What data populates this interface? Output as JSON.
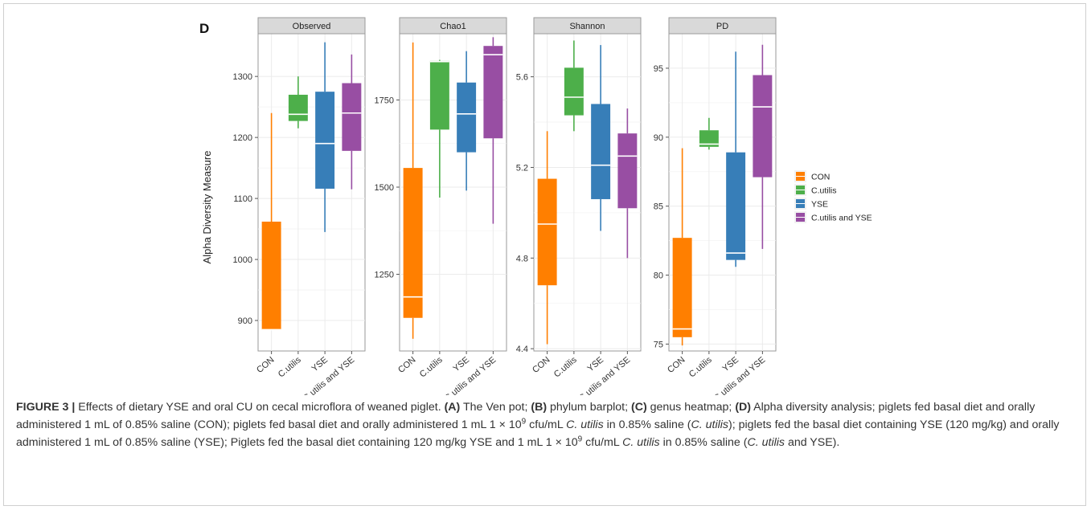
{
  "panel_label": "D",
  "y_axis_label": "Alpha Diversity Measure",
  "legend": {
    "placement": "right",
    "entries": [
      {
        "name": "CON",
        "color": "#FF7F00"
      },
      {
        "name": "C.utilis",
        "color": "#4DAF4A"
      },
      {
        "name": "YSE",
        "color": "#377EB8"
      },
      {
        "name": "C.utilis and YSE",
        "color": "#984EA3"
      }
    ]
  },
  "chart_data": [
    {
      "type": "boxplot",
      "title": "Observed",
      "categories": [
        "CON",
        "C.utilis",
        "YSE",
        "C.utilis and YSE"
      ],
      "ylim": [
        850,
        1370
      ],
      "yticks": [
        900,
        1000,
        1100,
        1200,
        1300
      ],
      "boxes": [
        {
          "min": 885,
          "q1": 885,
          "median": 885,
          "q3": 1062,
          "max": 1240
        },
        {
          "min": 1215,
          "q1": 1227,
          "median": 1238,
          "q3": 1270,
          "max": 1300
        },
        {
          "min": 1045,
          "q1": 1116,
          "median": 1190,
          "q3": 1275,
          "max": 1356
        },
        {
          "min": 1115,
          "q1": 1178,
          "median": 1240,
          "q3": 1289,
          "max": 1336
        }
      ]
    },
    {
      "type": "boxplot",
      "title": "Chao1",
      "categories": [
        "CON",
        "C.utilis",
        "YSE",
        "C.utilis and YSE"
      ],
      "ylim": [
        1030,
        1940
      ],
      "yticks": [
        1250,
        1500,
        1750
      ],
      "boxes": [
        {
          "min": 1065,
          "q1": 1125,
          "median": 1185,
          "q3": 1555,
          "max": 1915
        },
        {
          "min": 1470,
          "q1": 1665,
          "median": 1860,
          "q3": 1862,
          "max": 1865
        },
        {
          "min": 1490,
          "q1": 1600,
          "median": 1710,
          "q3": 1800,
          "max": 1890
        },
        {
          "min": 1395,
          "q1": 1640,
          "median": 1880,
          "q3": 1905,
          "max": 1930
        }
      ]
    },
    {
      "type": "boxplot",
      "title": "Shannon",
      "categories": [
        "CON",
        "C.utilis",
        "YSE",
        "C.utilis and YSE"
      ],
      "ylim": [
        4.39,
        5.79
      ],
      "yticks": [
        4.4,
        4.8,
        5.2,
        5.6
      ],
      "boxes": [
        {
          "min": 4.42,
          "q1": 4.68,
          "median": 4.95,
          "q3": 5.15,
          "max": 5.36
        },
        {
          "min": 5.36,
          "q1": 5.43,
          "median": 5.51,
          "q3": 5.64,
          "max": 5.76
        },
        {
          "min": 4.92,
          "q1": 5.06,
          "median": 5.21,
          "q3": 5.48,
          "max": 5.74
        },
        {
          "min": 4.8,
          "q1": 5.02,
          "median": 5.25,
          "q3": 5.35,
          "max": 5.46
        }
      ]
    },
    {
      "type": "boxplot",
      "title": "PD",
      "categories": [
        "CON",
        "C.utilis",
        "YSE",
        "C.utilis and YSE"
      ],
      "ylim": [
        74.5,
        97.5
      ],
      "yticks": [
        75,
        80,
        85,
        90,
        95
      ],
      "boxes": [
        {
          "min": 74.9,
          "q1": 75.5,
          "median": 76.1,
          "q3": 82.7,
          "max": 89.2
        },
        {
          "min": 89.1,
          "q1": 89.3,
          "median": 89.5,
          "q3": 90.5,
          "max": 91.4
        },
        {
          "min": 80.6,
          "q1": 81.1,
          "median": 81.6,
          "q3": 88.9,
          "max": 96.2
        },
        {
          "min": 81.9,
          "q1": 87.1,
          "median": 92.2,
          "q3": 94.5,
          "max": 96.7
        }
      ]
    }
  ],
  "caption": {
    "fig_label": "FIGURE 3 |",
    "intro": " Effects of dietary YSE and oral CU on cecal microflora of weaned piglet. ",
    "a_label": "(A)",
    "a_text": " The Ven pot; ",
    "b_label": "(B)",
    "b_text": " phylum barplot; ",
    "c_label": "(C)",
    "c_text": " genus heatmap; ",
    "d_label": "(D)",
    "d_text1": " Alpha diversity analysis; piglets fed basal diet and orally administered 1 mL of 0.85% saline (CON); piglets fed basal diet and orally administered 1 mL 1 × 10",
    "exp1": "9",
    "d_text2": " cfu/mL ",
    "sp1": "C. utilis",
    "d_text3": " in 0.85% saline (",
    "sp2": "C. utilis",
    "d_text4": "); piglets fed the basal diet containing YSE (120 mg/kg) and orally administered 1 mL of 0.85% saline (YSE); Piglets fed the basal diet containing 120 mg/kg YSE and 1 mL 1 × 10",
    "exp2": "9",
    "d_text5": " cfu/mL ",
    "sp3": "C. utilis",
    "d_text6": " in 0.85% saline (",
    "sp4": "C. utilis",
    "d_text7": " and YSE)."
  }
}
